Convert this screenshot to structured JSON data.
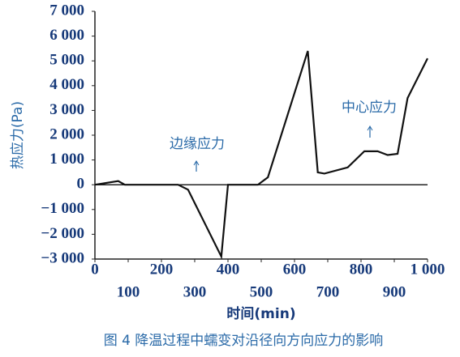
{
  "chart_data": {
    "type": "line",
    "xlabel": "时间(min)",
    "ylabel": "热应力(Pa)",
    "caption": "图 4 降温过程中蠕变对沿径向方向应力的影响",
    "annotations": [
      "边缘应力",
      "中心应力"
    ],
    "x": [
      0,
      70,
      90,
      250,
      280,
      380,
      400,
      490,
      520,
      640,
      670,
      690,
      760,
      810,
      850,
      880,
      910,
      940,
      1000
    ],
    "series": [
      {
        "color": "#111111",
        "values": [
          0,
          150,
          0,
          0,
          -200,
          -2900,
          0,
          0,
          300,
          5400,
          500,
          450,
          700,
          1350,
          1350,
          1200,
          1250,
          3500,
          5100
        ]
      }
    ],
    "xlim": [
      0,
      1000
    ],
    "xticks": [
      0,
      100,
      200,
      300,
      400,
      500,
      600,
      700,
      800,
      900,
      {
        "value": 1000,
        "label": "1 000"
      }
    ],
    "ylim": [
      -3000,
      7000
    ],
    "yticks": [
      {
        "value": -3000,
        "label": "−3 000"
      },
      {
        "value": -2000,
        "label": "−2 000"
      },
      {
        "value": -1000,
        "label": "−1 000"
      },
      0,
      {
        "value": 1000,
        "label": "1 000"
      },
      {
        "value": 2000,
        "label": "2 000"
      },
      {
        "value": 3000,
        "label": "3 000"
      },
      {
        "value": 4000,
        "label": "4 000"
      },
      {
        "value": 5000,
        "label": "5 000"
      },
      {
        "value": 6000,
        "label": "6 000"
      },
      {
        "value": 7000,
        "label": "7 000"
      }
    ],
    "grid": false
  }
}
